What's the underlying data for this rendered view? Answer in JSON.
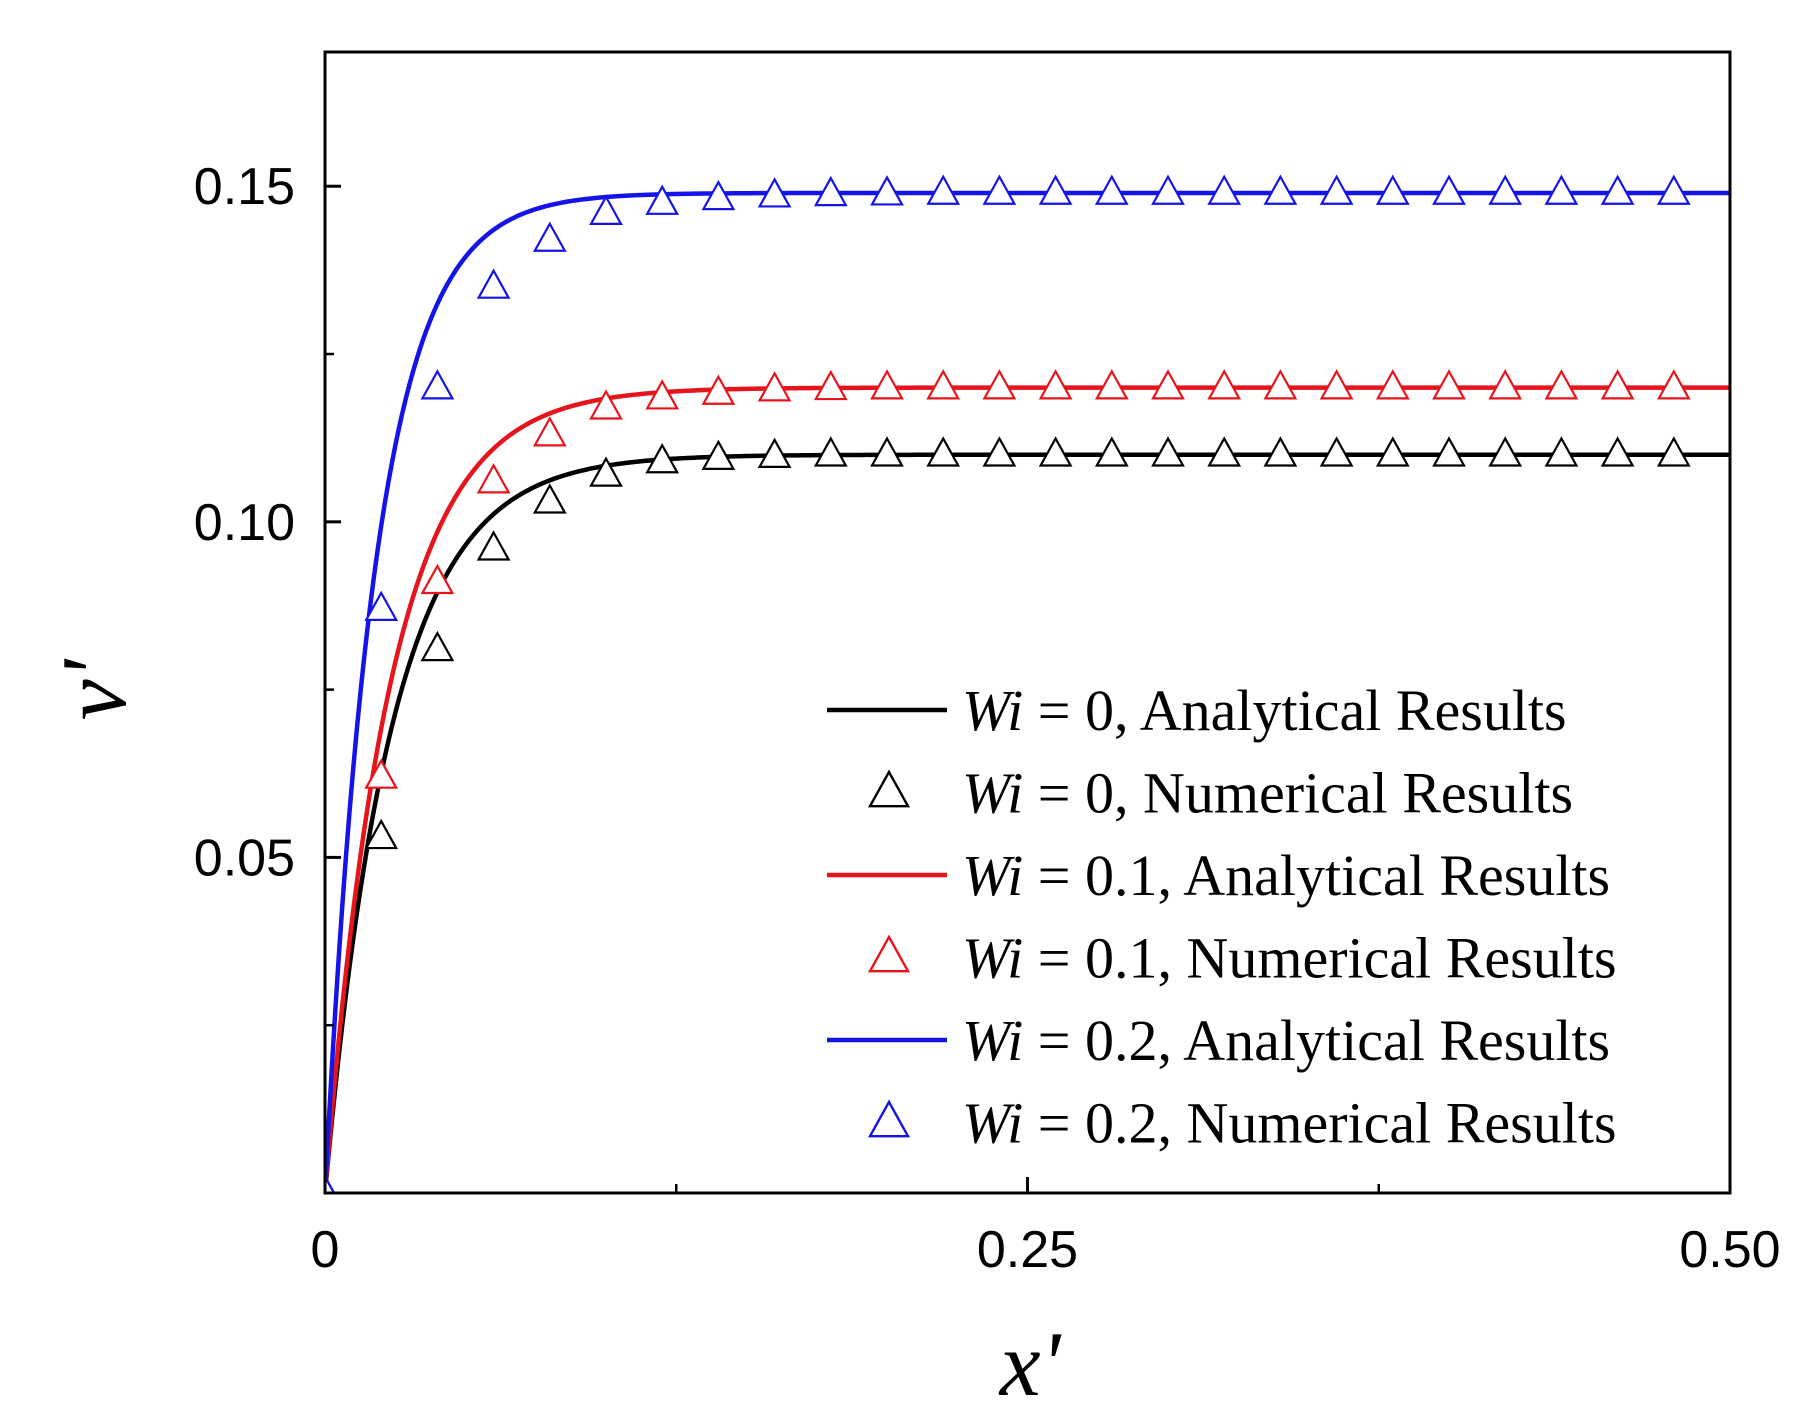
{
  "chart_data": {
    "type": "line",
    "title": "",
    "xlabel": "x'",
    "ylabel": "v'",
    "xlim": [
      0,
      0.5
    ],
    "ylim": [
      0,
      0.17
    ],
    "xticks": [
      {
        "value": 0,
        "label": "0"
      },
      {
        "value": 0.25,
        "label": "0.25"
      },
      {
        "value": 0.5,
        "label": "0.50"
      }
    ],
    "xminor": [
      0.125,
      0.375
    ],
    "yticks": [
      {
        "value": 0.05,
        "label": "0.05"
      },
      {
        "value": 0.1,
        "label": "0.10"
      },
      {
        "value": 0.15,
        "label": "0.15"
      }
    ],
    "yminor": [
      0.025,
      0.075,
      0.125
    ],
    "grid": false,
    "legend_position": "bottom-right",
    "marker_x": [
      0,
      0.02,
      0.04,
      0.06,
      0.08,
      0.1,
      0.12,
      0.14,
      0.16,
      0.18,
      0.2,
      0.22,
      0.24,
      0.26,
      0.28,
      0.3,
      0.32,
      0.34,
      0.36,
      0.38,
      0.4,
      0.42,
      0.44,
      0.46,
      0.48
    ],
    "series": [
      {
        "name": "Wi = 0",
        "color": "#000000",
        "steady_value": 0.11,
        "rate": 42,
        "numerical": [
          0,
          0.053,
          0.081,
          0.096,
          0.103,
          0.107,
          0.109,
          0.1095,
          0.1098,
          0.11,
          0.11,
          0.11,
          0.11,
          0.11,
          0.11,
          0.11,
          0.11,
          0.11,
          0.11,
          0.11,
          0.11,
          0.11,
          0.11,
          0.11,
          0.11
        ]
      },
      {
        "name": "Wi = 0.1",
        "color": "#e8141c",
        "steady_value": 0.12,
        "rate": 43,
        "numerical": [
          0,
          0.062,
          0.091,
          0.106,
          0.113,
          0.117,
          0.1185,
          0.1192,
          0.1197,
          0.1199,
          0.12,
          0.12,
          0.12,
          0.12,
          0.12,
          0.12,
          0.12,
          0.12,
          0.12,
          0.12,
          0.12,
          0.12,
          0.12,
          0.12,
          0.12
        ]
      },
      {
        "name": "Wi = 0.2",
        "color": "#1414e8",
        "steady_value": 0.149,
        "rate": 55,
        "numerical": [
          0,
          0.087,
          0.12,
          0.135,
          0.142,
          0.146,
          0.1475,
          0.1482,
          0.1486,
          0.1488,
          0.1489,
          0.149,
          0.149,
          0.149,
          0.149,
          0.149,
          0.149,
          0.149,
          0.149,
          0.149,
          0.149,
          0.149,
          0.149,
          0.149,
          0.149
        ]
      }
    ]
  },
  "legend": {
    "entries": [
      {
        "kind": "line",
        "series": 0,
        "italic": "Wi",
        "rest": " = 0, Analytical Results"
      },
      {
        "kind": "marker",
        "series": 0,
        "italic": "Wi",
        "rest": " = 0, Numerical Results"
      },
      {
        "kind": "line",
        "series": 1,
        "italic": "Wi",
        "rest": " = 0.1, Analytical Results"
      },
      {
        "kind": "marker",
        "series": 1,
        "italic": "Wi",
        "rest": " = 0.1, Numerical Results"
      },
      {
        "kind": "line",
        "series": 2,
        "italic": "Wi",
        "rest": " = 0.2, Analytical Results"
      },
      {
        "kind": "marker",
        "series": 2,
        "italic": "Wi",
        "rest": " = 0.2, Numerical Results"
      }
    ]
  }
}
